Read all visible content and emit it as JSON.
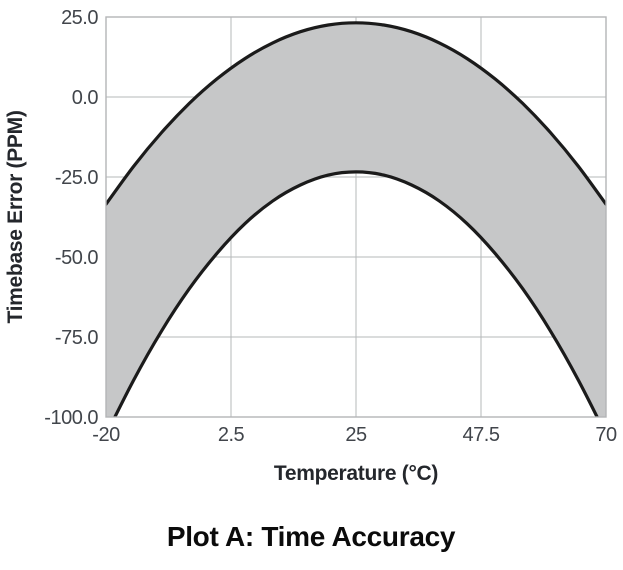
{
  "chart_data": {
    "type": "area",
    "title": "Plot A: Time Accuracy",
    "xlabel": "Temperature (°C)",
    "ylabel": "Timebase Error (PPM)",
    "xlim": [
      -20,
      70
    ],
    "ylim": [
      -100,
      25
    ],
    "xticks": [
      -20,
      2.5,
      25,
      47.5,
      70
    ],
    "xtick_labels": [
      "-20",
      "2.5",
      "25",
      "47.5",
      "70"
    ],
    "yticks": [
      25,
      0,
      -25,
      -50,
      -75,
      -100
    ],
    "ytick_labels": [
      "25.0",
      "0.0",
      "-25.0",
      "-50.0",
      "-75.0",
      "-100.0"
    ],
    "grid": true,
    "legend": "none",
    "x": [
      -20,
      -15,
      -10,
      -5,
      0,
      5,
      10,
      15,
      20,
      25,
      30,
      35,
      40,
      45,
      50,
      55,
      60,
      65,
      70
    ],
    "series": [
      {
        "name": "upper_tolerance_bound",
        "values": [
          -33.5,
          -21.6,
          -11.1,
          -2.0,
          5.7,
          12.0,
          16.9,
          20.4,
          22.5,
          23.2,
          22.5,
          20.4,
          16.9,
          12.0,
          5.7,
          -2.0,
          -11.1,
          -21.6,
          -33.5
        ]
      },
      {
        "name": "lower_tolerance_bound",
        "values": [
          -105.6,
          -88.4,
          -73.1,
          -59.9,
          -48.8,
          -39.6,
          -32.5,
          -27.5,
          -24.4,
          -23.4,
          -24.4,
          -27.5,
          -32.5,
          -39.6,
          -48.8,
          -59.9,
          -73.1,
          -88.4,
          -105.6
        ]
      }
    ],
    "band": {
      "between": [
        "upper_tolerance_bound",
        "lower_tolerance_bound"
      ],
      "fill": "#c6c7c8"
    },
    "colors": {
      "curve": "#1b1b1b",
      "band_fill": "#c6c7c8",
      "gridline": "#b6b8ba",
      "plot_border": "#b3b5b7",
      "tick_label": "#41454b",
      "axis_title": "#24272c",
      "caption": "#0b0b0b",
      "background": "#ffffff"
    }
  }
}
